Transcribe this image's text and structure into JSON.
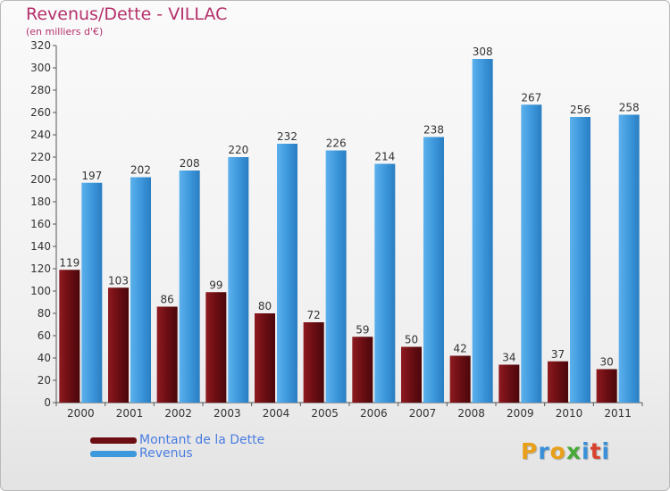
{
  "header": {
    "title": "Revenus/Dette - VILLAC",
    "subtitle": "(en milliers d'€)"
  },
  "chart_data": {
    "type": "bar",
    "title": "Revenus/Dette - VILLAC",
    "subtitle": "(en milliers d'€)",
    "xlabel": "",
    "ylabel": "",
    "ylim": [
      0,
      320
    ],
    "yticks": [
      0,
      20,
      40,
      60,
      80,
      100,
      120,
      140,
      160,
      180,
      200,
      220,
      240,
      260,
      280,
      300,
      320
    ],
    "grid": false,
    "legend_position": "bottom-left",
    "categories": [
      "2000",
      "2001",
      "2002",
      "2003",
      "2004",
      "2005",
      "2006",
      "2007",
      "2008",
      "2009",
      "2010",
      "2011"
    ],
    "series": [
      {
        "name": "Montant de la Dette",
        "color": "#6b0d12",
        "values": [
          119,
          103,
          86,
          99,
          80,
          72,
          59,
          50,
          42,
          34,
          37,
          30
        ]
      },
      {
        "name": "Revenus",
        "color": "#3e98dc",
        "values": [
          197,
          202,
          208,
          220,
          232,
          226,
          214,
          238,
          308,
          267,
          256,
          258
        ]
      }
    ]
  },
  "legend": {
    "items": [
      {
        "label": "Montant de la Dette",
        "color": "#6b0d12"
      },
      {
        "label": "Revenus",
        "color": "#3e98dc"
      }
    ]
  },
  "logo": {
    "letters": [
      "P",
      "r",
      "o",
      "x",
      "i",
      "t",
      "i"
    ],
    "colors": [
      "#e8a019",
      "#3a90d8",
      "#e8a019",
      "#49a83a",
      "#3a90d8",
      "#d8432f",
      "#3a90d8"
    ]
  }
}
